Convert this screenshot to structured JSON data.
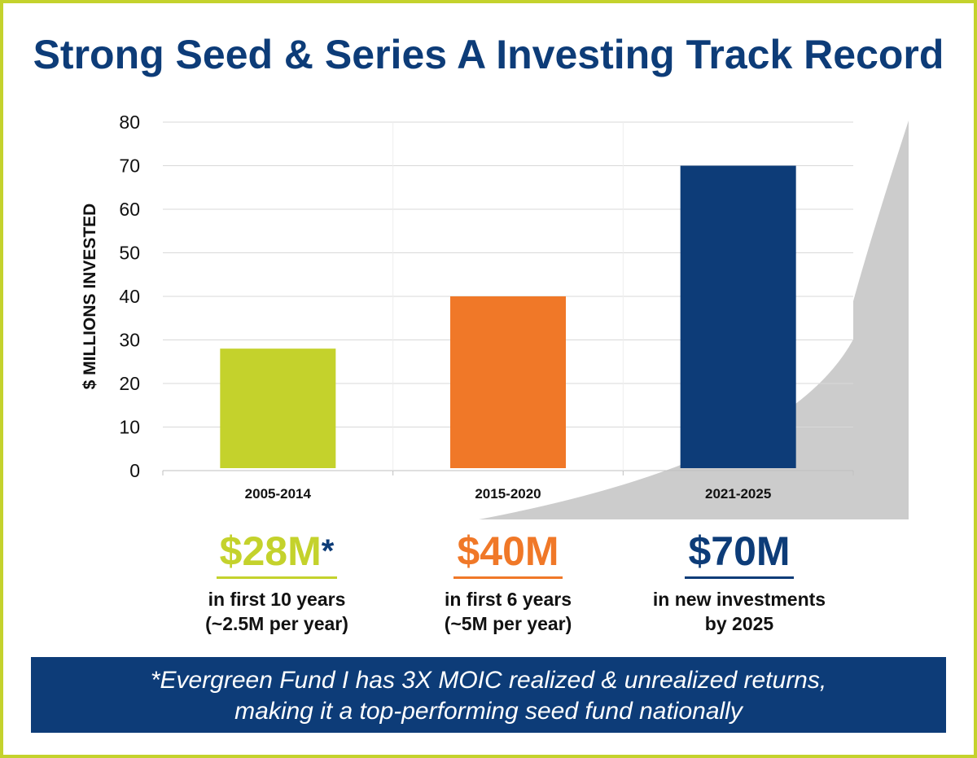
{
  "title": "Strong Seed & Series A Investing Track Record",
  "colors": {
    "green": "#c4d22c",
    "orange": "#f07828",
    "navy": "#0d3c78",
    "swoosh": "#cccccc"
  },
  "chart_data": {
    "type": "bar",
    "categories": [
      "2005-2014",
      "2015-2020",
      "2021-2025"
    ],
    "values": [
      28,
      40,
      70
    ],
    "bar_colors": [
      "#c4d22c",
      "#f07828",
      "#0d3c78"
    ],
    "ylabel": "$ MILLIONS INVESTED",
    "xlabel": "",
    "ylim": [
      0,
      80
    ],
    "yticks": [
      0,
      10,
      20,
      30,
      40,
      50,
      60,
      70,
      80
    ],
    "grid": true
  },
  "summaries": [
    {
      "amount": "$28M",
      "star": "*",
      "line1": "in first 10 years",
      "line2": "(~2.5M per year)"
    },
    {
      "amount": "$40M",
      "star": "",
      "line1": "in first 6 years",
      "line2": "(~5M per year)"
    },
    {
      "amount": "$70M",
      "star": "",
      "line1": "in new investments",
      "line2": "by 2025"
    }
  ],
  "footnote": {
    "line1": "*Evergreen Fund I has 3X MOIC realized & unrealized returns,",
    "line2": "making it a top-performing seed fund nationally"
  }
}
